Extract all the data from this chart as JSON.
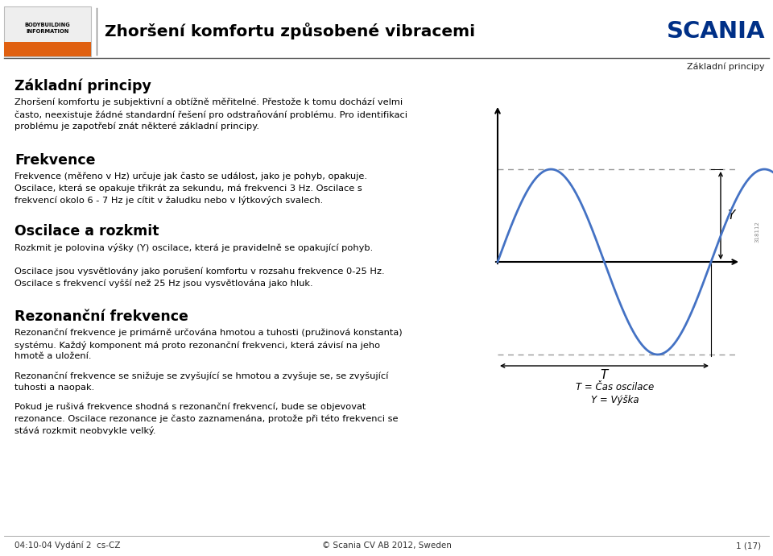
{
  "bg_color": "#ffffff",
  "title_header": "Zhoršení komfortu způsobené vibracemi",
  "scania_text": "SCANIA",
  "scania_color": "#003087",
  "subheader_right": "Základní principy",
  "section1_title": "Základní principy",
  "section1_body": "Zhoršení komfortu je subjektivní a obtížně měřitelné. Přestože k tomu dochází velmi\nčasto, neexistuje žádné standardní řešení pro odstraňování problému. Pro identifikaci\nproblému je zapotřebí znát některé základní principy.",
  "section2_title": "Frekvence",
  "section2_body": "Frekvence (měřeno v Hz) určuje jak často se událost, jako je pohyb, opakuje.\nOscilace, která se opakuje třikrát za sekundu, má frekvenci 3 Hz. Oscilace s\nfrekvencí okolo 6 - 7 Hz je cítit v žaludku nebo v lýtkových svalech.",
  "section3_title": "Oscilace a rozkmit",
  "section3_body1": "Rozkmit je polovina výšky (Y) oscilace, která je pravidelně se opakující pohyb.",
  "section3_body2": "Oscilace jsou vysvětlovány jako porušení komfortu v rozsahu frekvence 0-25 Hz.\nOscilace s frekvencí vyšší než 25 Hz jsou vysvětlována jako hluk.",
  "section4_title": "Rezonanční frekvence",
  "section4_body1": "Rezonanční frekvence je primárně určována hmotou a tuhosti (pružinová konstanta)\nsystému. Každý komponent má proto rezonanční frekvenci, která závisí na jeho\nhmotě a uložení.",
  "section4_body2": "Rezonanční frekvence se snižuje se zvyšující se hmotou a zvyšuje se, se zvyšující\ntuhosti a naopak.",
  "section4_body3": "Pokud je rušivá frekvence shodná s rezonanční frekvencí, bude se objevovat\nrezonance. Oscilace rezonance je často zaznamenána, protože při této frekvenci se\nstává rozkmit neobvykle velký.",
  "footer_left": "04:10-04 Vydání 2  cs-CZ",
  "footer_center": "© Scania CV AB 2012, Sweden",
  "footer_right": "1 (17)",
  "sine_color": "#4472c4",
  "dashed_color": "#999999",
  "caption_T": "T = Čas oscilace",
  "caption_Y": "Y = Výška",
  "img_number": "318112"
}
